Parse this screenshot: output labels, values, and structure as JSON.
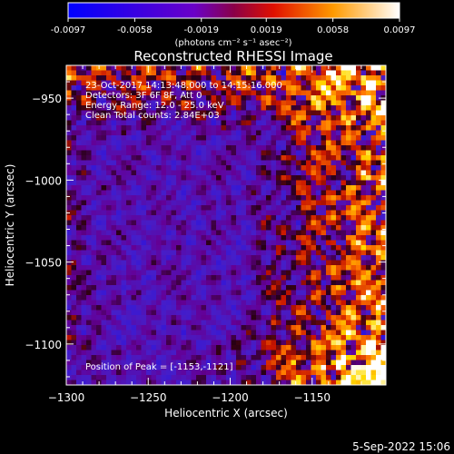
{
  "colorbar": {
    "ticks": [
      "-0.0097",
      "-0.0058",
      "-0.0019",
      "0.0019",
      "0.0058",
      "0.0097"
    ],
    "units": "(photons cm⁻² s⁻¹ asec⁻²)",
    "min": -0.0097,
    "max": 0.0097
  },
  "chart_data": {
    "type": "heatmap",
    "title": "Reconstructed RHESSI Image",
    "xlabel": "Heliocentric X (arcsec)",
    "ylabel": "Heliocentric Y (arcsec)",
    "xlim": [
      -1300,
      -1105
    ],
    "ylim": [
      -1125,
      -930
    ],
    "xticks": [
      -1300,
      -1250,
      -1200,
      -1150
    ],
    "yticks": [
      -950,
      -1000,
      -1050,
      -1100
    ],
    "xtick_labels": [
      "−1300",
      "−1250",
      "−1200",
      "−1150"
    ],
    "ytick_labels": [
      "−950",
      "−1000",
      "−1050",
      "−1100"
    ],
    "annotations": [
      "23-Oct-2017 14:13:48.000 to 14:15:16.000",
      "Detectors: 3F 6F 8F, Att 0",
      "Energy Range: 12.0 - 25.0 keV",
      "Clean    Total counts: 2.84E+03"
    ],
    "peak_label": "Position of Peak = [-1153,-1121]",
    "colormap": "rainbow (blue-purple-red-orange-yellow-white)"
  },
  "footer": {
    "date": "5-Sep-2022 15:06"
  }
}
